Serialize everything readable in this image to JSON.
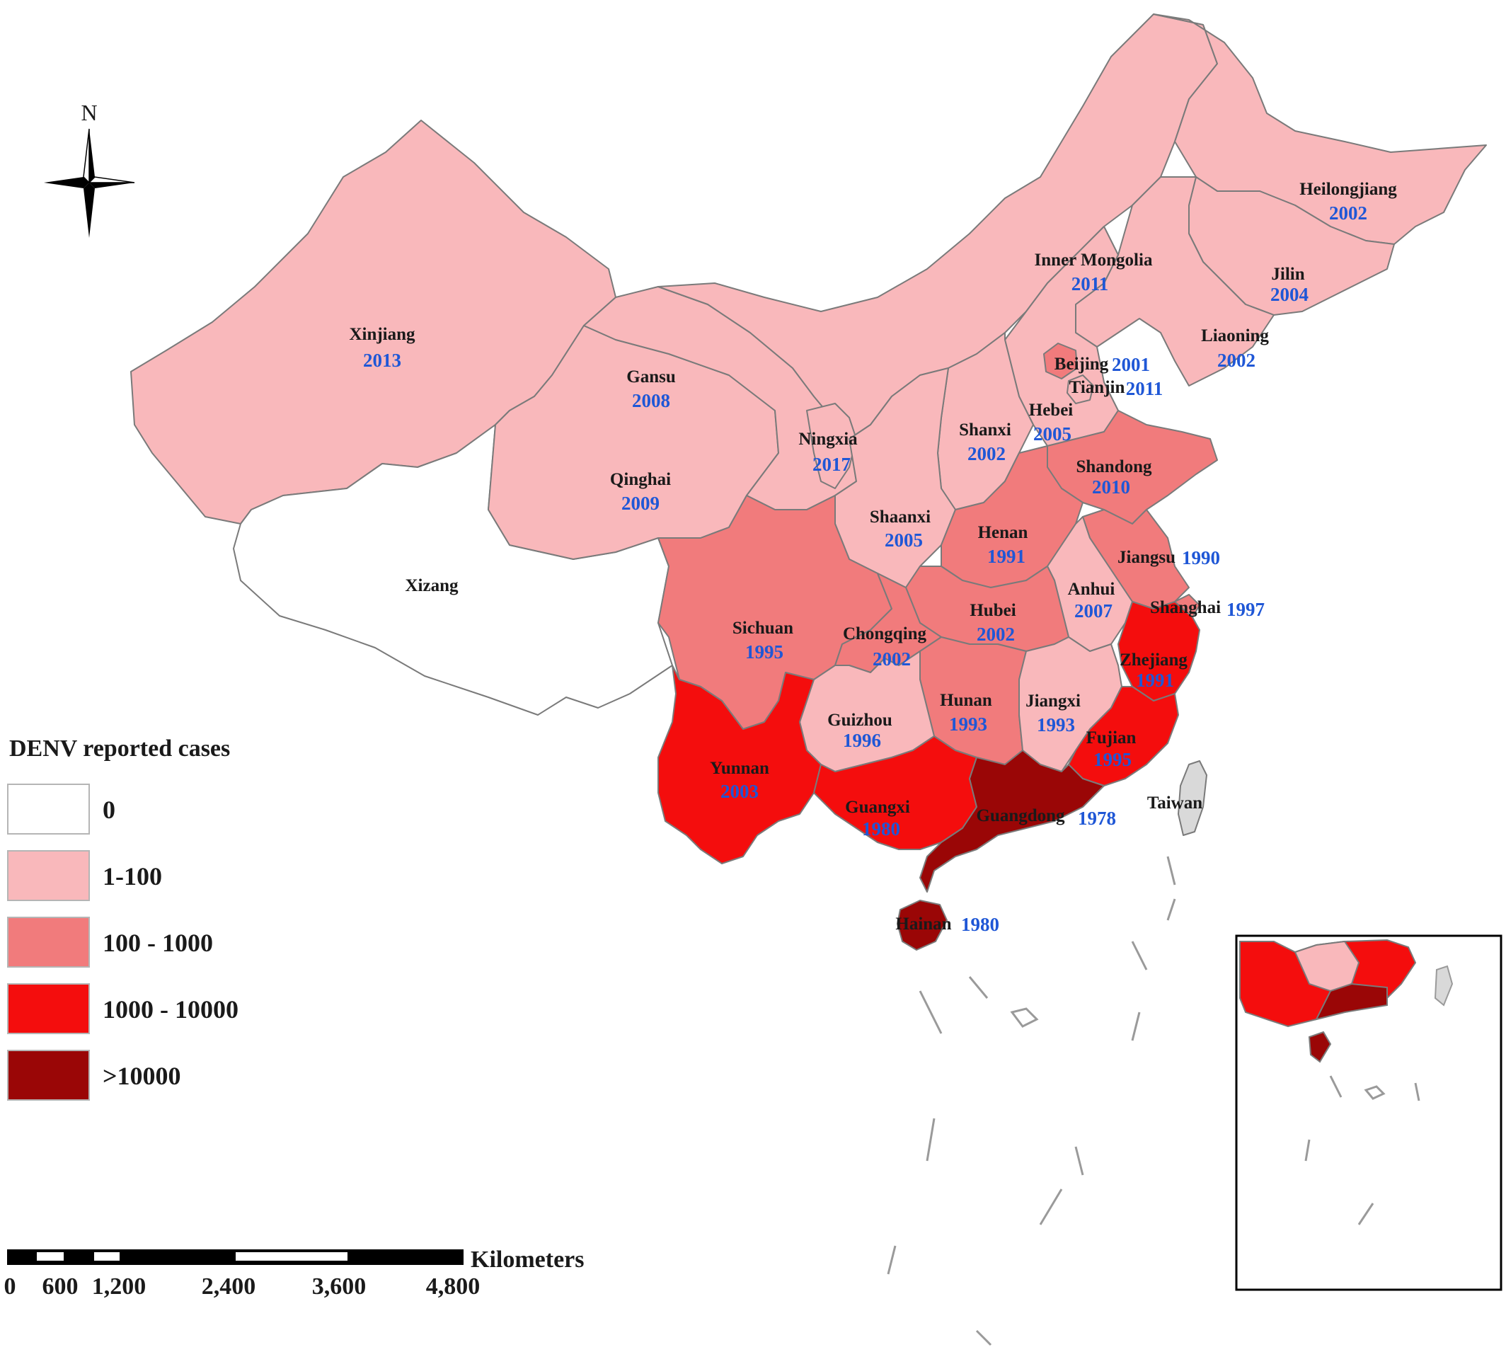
{
  "north_label": "N",
  "legend": {
    "title": "DENV reported cases",
    "classes": [
      {
        "label": "0",
        "color": "#ffffff"
      },
      {
        "label": "1-100",
        "color": "#f9b8bb"
      },
      {
        "label": "100 - 1000",
        "color": "#f17b7c"
      },
      {
        "label": "1000 - 10000",
        "color": "#f40d0d"
      },
      {
        "label": ">10000",
        "color": "#9a0606"
      }
    ]
  },
  "scale_bar": {
    "unit": "Kilometers",
    "ticks": [
      "0",
      "600",
      "1,200",
      "2,400",
      "3,600",
      "4,800"
    ]
  },
  "regions": [
    {
      "name": "Xinjiang",
      "year": "2013",
      "class": 1
    },
    {
      "name": "Gansu",
      "year": "2008",
      "class": 1
    },
    {
      "name": "Qinghai",
      "year": "2009",
      "class": 1
    },
    {
      "name": "Xizang",
      "year": "",
      "class": 0
    },
    {
      "name": "Inner Mongolia",
      "year": "2011",
      "class": 1
    },
    {
      "name": "Heilongjiang",
      "year": "2002",
      "class": 1
    },
    {
      "name": "Jilin",
      "year": "2004",
      "class": 1
    },
    {
      "name": "Liaoning",
      "year": "2002",
      "class": 1
    },
    {
      "name": "Beijing",
      "year": "2001",
      "class": 2
    },
    {
      "name": "Tianjin",
      "year": "2011",
      "class": 1
    },
    {
      "name": "Hebei",
      "year": "2005",
      "class": 1
    },
    {
      "name": "Shanxi",
      "year": "2002",
      "class": 1
    },
    {
      "name": "Ningxia",
      "year": "2017",
      "class": 1
    },
    {
      "name": "Shaanxi",
      "year": "2005",
      "class": 1
    },
    {
      "name": "Shandong",
      "year": "2010",
      "class": 2
    },
    {
      "name": "Henan",
      "year": "1991",
      "class": 2
    },
    {
      "name": "Jiangsu",
      "year": "1990",
      "class": 2
    },
    {
      "name": "Anhui",
      "year": "2007",
      "class": 1
    },
    {
      "name": "Shanghai",
      "year": "1997",
      "class": 2
    },
    {
      "name": "Hubei",
      "year": "2002",
      "class": 2
    },
    {
      "name": "Sichuan",
      "year": "1995",
      "class": 2
    },
    {
      "name": "Chongqing",
      "year": "2002",
      "class": 2
    },
    {
      "name": "Zhejiang",
      "year": "1991",
      "class": 3
    },
    {
      "name": "Hunan",
      "year": "1993",
      "class": 2
    },
    {
      "name": "Jiangxi",
      "year": "1993",
      "class": 1
    },
    {
      "name": "Guizhou",
      "year": "1996",
      "class": 1
    },
    {
      "name": "Fujian",
      "year": "1995",
      "class": 3
    },
    {
      "name": "Yunnan",
      "year": "2003",
      "class": 3
    },
    {
      "name": "Guangxi",
      "year": "1980",
      "class": 3
    },
    {
      "name": "Guangdong",
      "year": "1978",
      "class": 4
    },
    {
      "name": "Taiwan",
      "year": "",
      "class": 5
    },
    {
      "name": "Hainan",
      "year": "1980",
      "class": 4
    }
  ],
  "no_data_color": "#d9d9d9"
}
